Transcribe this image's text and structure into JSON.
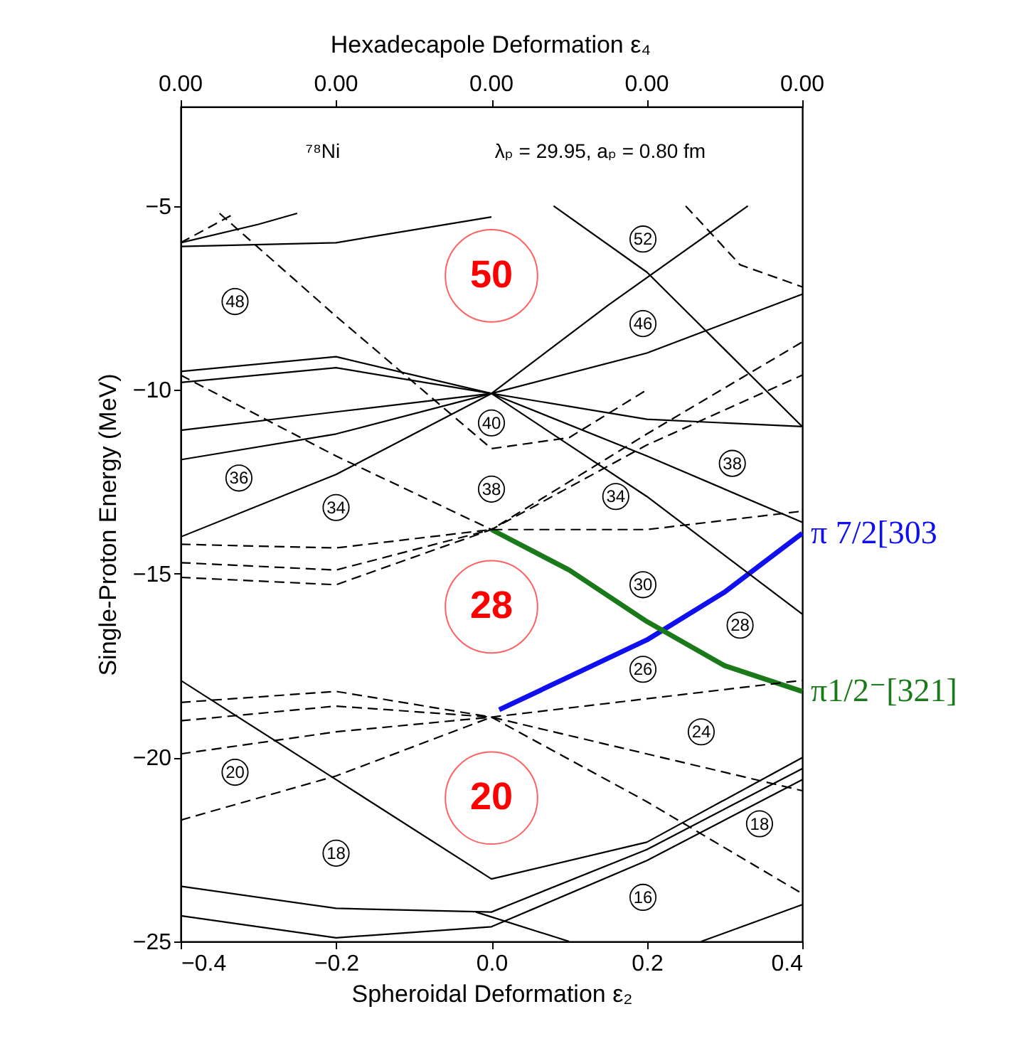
{
  "chart_data": {
    "type": "line",
    "xlabel": "Spheroidal Deformation ε₂",
    "ylabel": "Single-Proton Energy (MeV)",
    "xlim": [
      -0.4,
      0.4
    ],
    "xticks": [
      -0.4,
      -0.2,
      {
        "value": 0,
        "label": "0.0"
      },
      0.2,
      0.4
    ],
    "ylim": [
      -25,
      -2.3
    ],
    "yticks": [
      -25,
      -20,
      -15,
      -10,
      -5
    ],
    "series": [
      {
        "name": "π 7/2[303",
        "color": "#1010ee",
        "line_style": "solid",
        "x": [
          0.01,
          0.1,
          0.2,
          0.3,
          0.4
        ],
        "values": [
          -18.7,
          -17.8,
          -16.8,
          -15.5,
          -13.9
        ]
      },
      {
        "name": "π1/2⁻[321]",
        "color": "#1a7a1a",
        "line_style": "solid",
        "x": [
          0.0,
          0.1,
          0.2,
          0.3,
          0.4
        ],
        "values": [
          -13.8,
          -14.9,
          -16.3,
          -17.5,
          -18.2
        ]
      },
      {
        "color": "#000000",
        "line_style": "solid",
        "x": [
          -0.4,
          -0.2,
          0.0,
          0.2,
          0.4
        ],
        "values": [
          -17.9,
          -20.6,
          -23.3,
          -22.3,
          -20.0
        ]
      },
      {
        "color": "#000000",
        "line_style": "solid",
        "x": [
          -0.4,
          -0.2,
          0.0,
          0.2,
          0.4
        ],
        "values": [
          -23.5,
          -24.1,
          -24.2,
          -22.5,
          -20.3
        ]
      },
      {
        "color": "#000000",
        "line_style": "solid",
        "x": [
          -0.4,
          -0.2,
          0.0,
          0.2,
          0.4
        ],
        "values": [
          -24.3,
          -24.9,
          -24.6,
          -22.8,
          -20.6
        ]
      },
      {
        "color": "#000000",
        "line_style": "solid",
        "x": [
          -0.02,
          0.1
        ],
        "values": [
          -24.2,
          -25.0
        ]
      },
      {
        "color": "#000000",
        "line_style": "solid",
        "x": [
          0.27,
          0.4
        ],
        "values": [
          -25.0,
          -24.0
        ]
      },
      {
        "color": "#000000",
        "line_style": "dashed",
        "x": [
          -0.4,
          -0.2,
          0.0,
          0.2,
          0.4
        ],
        "values": [
          -18.5,
          -18.2,
          -18.9,
          -18.4,
          -17.9
        ]
      },
      {
        "color": "#000000",
        "line_style": "dashed",
        "x": [
          -0.4,
          -0.2,
          0.0,
          0.2,
          0.4
        ],
        "values": [
          -19.0,
          -18.6,
          -18.9,
          -19.9,
          -20.9
        ]
      },
      {
        "color": "#000000",
        "line_style": "dashed",
        "x": [
          -0.4,
          -0.2,
          0.0,
          0.2,
          0.4
        ],
        "values": [
          -19.9,
          -19.3,
          -18.9,
          -21.2,
          -23.7
        ]
      },
      {
        "color": "#000000",
        "line_style": "dashed",
        "x": [
          -0.4,
          -0.2,
          0.0
        ],
        "values": [
          -21.7,
          -20.5,
          -18.9
        ]
      },
      {
        "color": "#000000",
        "line_style": "dashed",
        "x": [
          -0.4,
          -0.2,
          0.0,
          0.2,
          0.4
        ],
        "values": [
          -14.2,
          -14.3,
          -13.8,
          -13.8,
          -13.3
        ]
      },
      {
        "color": "#000000",
        "line_style": "dashed",
        "x": [
          -0.4,
          -0.2,
          0.0,
          0.2,
          0.4
        ],
        "values": [
          -14.7,
          -14.9,
          -13.8,
          -11.5,
          -9.6
        ]
      },
      {
        "color": "#000000",
        "line_style": "dashed",
        "x": [
          -0.4,
          -0.2,
          0.0,
          0.2,
          0.4
        ],
        "values": [
          -15.1,
          -15.3,
          -13.8,
          -11.2,
          -8.7
        ]
      },
      {
        "color": "#000000",
        "line_style": "dashed",
        "x": [
          -0.4,
          -0.2,
          0.0
        ],
        "values": [
          -9.6,
          -11.8,
          -13.8
        ]
      },
      {
        "color": "#000000",
        "line_style": "solid",
        "x": [
          -0.4,
          -0.2,
          0.0,
          0.15,
          0.33
        ],
        "values": [
          -14.0,
          -12.3,
          -10.1,
          -7.7,
          -5.0
        ]
      },
      {
        "color": "#000000",
        "line_style": "solid",
        "x": [
          -0.4,
          -0.2,
          0.0,
          0.2,
          0.4
        ],
        "values": [
          -9.5,
          -9.1,
          -10.1,
          -11.8,
          -13.6
        ]
      },
      {
        "color": "#000000",
        "line_style": "solid",
        "x": [
          -0.4,
          -0.2,
          0.0,
          0.2,
          0.4
        ],
        "values": [
          -9.8,
          -9.4,
          -10.1,
          -12.9,
          -16.1
        ]
      },
      {
        "color": "#000000",
        "line_style": "solid",
        "x": [
          -0.4,
          -0.2,
          0.0,
          0.2,
          0.4
        ],
        "values": [
          -11.1,
          -10.6,
          -10.1,
          -10.8,
          -11.0
        ]
      },
      {
        "color": "#000000",
        "line_style": "solid",
        "x": [
          -0.4,
          -0.2,
          0.0,
          0.2,
          0.4
        ],
        "values": [
          -11.9,
          -11.2,
          -10.1,
          -9.0,
          -7.4
        ]
      },
      {
        "color": "#000000",
        "line_style": "solid",
        "x": [
          0.08,
          0.2,
          0.4
        ],
        "values": [
          -5.0,
          -6.8,
          -11.0
        ]
      },
      {
        "color": "#000000",
        "line_style": "solid",
        "x": [
          -0.4,
          -0.2,
          0.0
        ],
        "values": [
          -6.1,
          -6.0,
          -5.3
        ]
      },
      {
        "color": "#000000",
        "line_style": "solid",
        "x": [
          -0.4,
          -0.3,
          -0.25
        ],
        "values": [
          -6.0,
          -5.5,
          -5.2
        ]
      },
      {
        "color": "#000000",
        "line_style": "dashed",
        "x": [
          -0.4,
          -0.33
        ],
        "values": [
          -6.0,
          -5.2
        ]
      },
      {
        "color": "#000000",
        "line_style": "dashed",
        "x": [
          -0.35,
          -0.2,
          0.0,
          0.1,
          0.2
        ],
        "values": [
          -5.2,
          -8.0,
          -11.6,
          -11.3,
          -10.0
        ]
      },
      {
        "color": "#000000",
        "line_style": "dashed",
        "x": [
          0.25,
          0.32,
          0.4
        ],
        "values": [
          -5.0,
          -6.6,
          -7.2
        ]
      }
    ],
    "annotations": [
      "Hexadecapole Deformation ε₄",
      "0.00",
      "0.00",
      "0.00",
      "0.00",
      "0.00",
      "⁷⁸Ni",
      "λₚ = 29.95,  aₚ = 0.80 fm",
      "50",
      "28",
      "20",
      "48",
      "52",
      "46",
      "40",
      "38",
      "36",
      "34",
      "34",
      "38",
      "30",
      "28",
      "26",
      "24",
      "20",
      "18",
      "18",
      "16"
    ]
  }
}
